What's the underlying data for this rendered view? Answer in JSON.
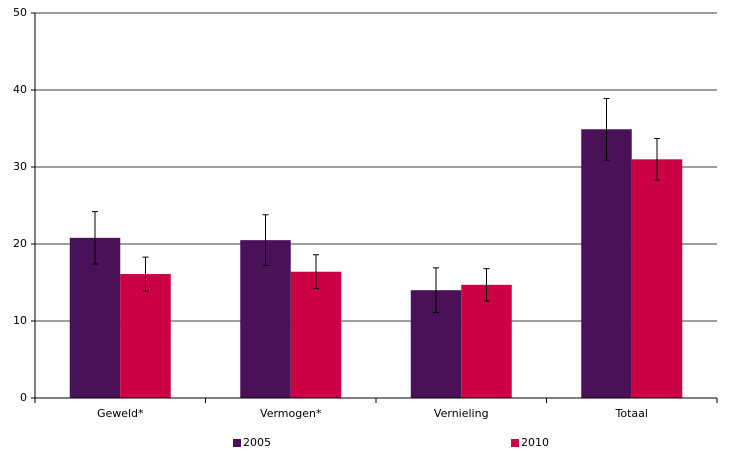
{
  "chart_data": {
    "type": "bar",
    "categories": [
      "Geweld*",
      "Vermogen*",
      "Vernieling",
      "Totaal"
    ],
    "series": [
      {
        "name": "2005",
        "color": "#4a1158",
        "values": [
          20.8,
          20.5,
          14.0,
          34.9
        ],
        "errors": [
          3.4,
          3.3,
          2.9,
          4.0
        ]
      },
      {
        "name": "2010",
        "color": "#cc0044",
        "values": [
          16.1,
          16.4,
          14.7,
          31.0
        ],
        "errors": [
          2.2,
          2.2,
          2.1,
          2.7
        ]
      }
    ],
    "ylim": [
      0,
      50
    ],
    "yticks": [
      0,
      10,
      20,
      30,
      40,
      50
    ],
    "grid": true,
    "legend": "bottom"
  }
}
